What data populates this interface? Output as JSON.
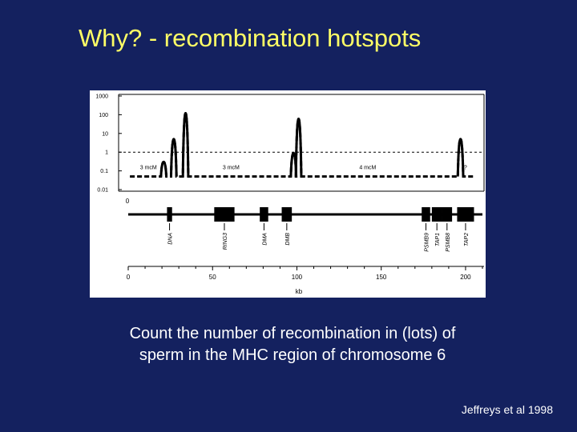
{
  "slide": {
    "title": "Why? - recombination hotspots",
    "caption_lines": [
      "Count the number of recombination in (lots) of",
      "sperm in the MHC region of chromosome 6"
    ],
    "citation": "Jeffreys et al 1998"
  },
  "colors": {
    "background": "#14215f",
    "title": "#ffff66",
    "text": "#ffffff",
    "plot_ink": "#000000"
  },
  "chart_data": {
    "type": "line",
    "title": "",
    "xlabel": "kb",
    "ylabel": "",
    "y_scale": "log",
    "xlim": [
      0,
      210
    ],
    "ylim": [
      0.01,
      1000
    ],
    "x_ticks": [
      0,
      50,
      100,
      150,
      200
    ],
    "x_tick_labels": [
      "0",
      "50",
      "100",
      "150",
      "200"
    ],
    "y_ticks": [
      0.01,
      0.1,
      1,
      10,
      100,
      1000
    ],
    "y_tick_labels": [
      "0.01",
      "0.1",
      "1",
      "10",
      "100",
      "1000"
    ],
    "reference_line": {
      "y": 1,
      "style": "dashed"
    },
    "baseline": {
      "y": 0.05,
      "style": "dashed"
    },
    "hotspots": [
      {
        "x": 21,
        "peak": 0.3
      },
      {
        "x": 27,
        "peak": 5
      },
      {
        "x": 34,
        "peak": 120
      },
      {
        "x": 98,
        "peak": 0.9
      },
      {
        "x": 101,
        "peak": 60
      },
      {
        "x": 197,
        "peak": 5
      }
    ],
    "region_labels": [
      {
        "x": 7,
        "text": "3 mcM"
      },
      {
        "x": 56,
        "text": "3 mcM"
      },
      {
        "x": 137,
        "text": "4 mcM"
      },
      {
        "x": 199,
        "text": "?"
      }
    ],
    "gene_map_start_label": "0",
    "genes": [
      {
        "name": "DNA",
        "start": 23,
        "end": 26
      },
      {
        "name": "RING3",
        "start": 51,
        "end": 63
      },
      {
        "name": "DMA",
        "start": 78,
        "end": 83
      },
      {
        "name": "DMB",
        "start": 91,
        "end": 97
      },
      {
        "name": "PSMB9",
        "start": 174,
        "end": 179
      },
      {
        "name": "TAP1",
        "start": 180,
        "end": 186
      },
      {
        "name": "PSMB8",
        "start": 186,
        "end": 192
      },
      {
        "name": "TAP2",
        "start": 195,
        "end": 205
      }
    ]
  }
}
